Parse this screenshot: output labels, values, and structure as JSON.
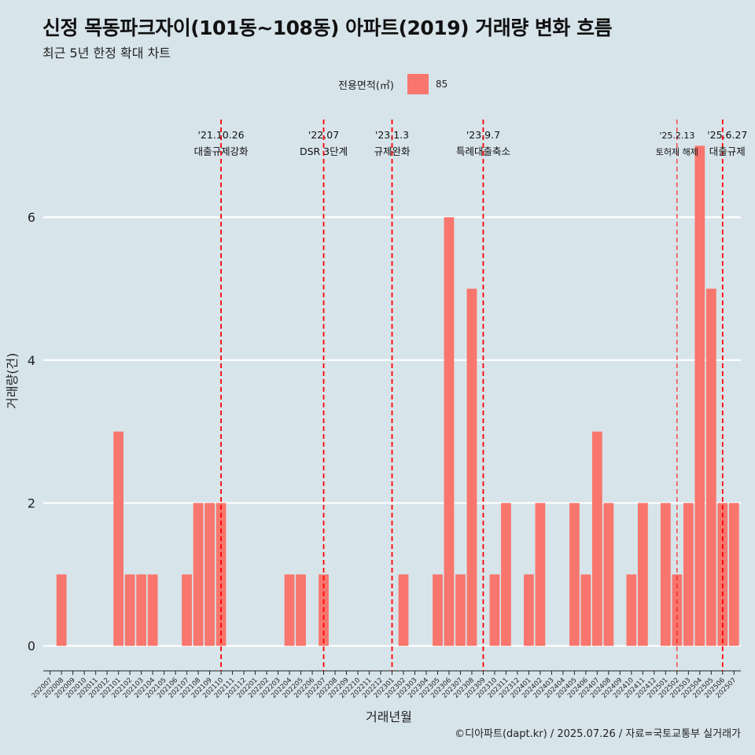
{
  "title": "신정 목동파크자이(101동~108동) 아파트(2019) 거래량 변화 흐름",
  "subtitle": "최근 5년 한정 확대 차트",
  "caption": "©디아파트(dapt.kr) / 2025.07.26 / 자료=국토교통부 실거래가",
  "colors": {
    "background": "#d7e4ea",
    "bar": "#f8766d",
    "event_line": "#ff0000",
    "grid": "#ffffff"
  },
  "chart_data": {
    "type": "bar",
    "xlabel": "거래년월",
    "ylabel": "거래량(건)",
    "ylim": [
      -0.35,
      7.5
    ],
    "yticks": [
      0,
      2,
      4,
      6
    ],
    "grid": true,
    "legend": {
      "title": "전용면적(㎡)",
      "position": "top",
      "entries": [
        "85"
      ]
    },
    "categories": [
      "202007",
      "202008",
      "202009",
      "202010",
      "202011",
      "202012",
      "202101",
      "202102",
      "202103",
      "202104",
      "202105",
      "202106",
      "202107",
      "202108",
      "202109",
      "202110",
      "202111",
      "202112",
      "202201",
      "202202",
      "202203",
      "202204",
      "202205",
      "202206",
      "202207",
      "202208",
      "202209",
      "202210",
      "202211",
      "202212",
      "202301",
      "202302",
      "202303",
      "202304",
      "202305",
      "202306",
      "202307",
      "202308",
      "202309",
      "202310",
      "202311",
      "202312",
      "202401",
      "202402",
      "202403",
      "202404",
      "202405",
      "202406",
      "202407",
      "202408",
      "202409",
      "202410",
      "202411",
      "202412",
      "202501",
      "202502",
      "202503",
      "202504",
      "202505",
      "202506",
      "202507"
    ],
    "series": [
      {
        "name": "85",
        "values": [
          0,
          1,
          0,
          0,
          0,
          0,
          3,
          1,
          1,
          1,
          0,
          0,
          1,
          2,
          2,
          2,
          0,
          0,
          0,
          0,
          0,
          1,
          1,
          0,
          1,
          0,
          0,
          0,
          0,
          0,
          0,
          1,
          0,
          0,
          1,
          6,
          1,
          5,
          0,
          1,
          2,
          0,
          1,
          2,
          0,
          0,
          2,
          1,
          3,
          2,
          0,
          1,
          2,
          0,
          2,
          1,
          2,
          7,
          5,
          2,
          2
        ]
      }
    ],
    "events": [
      {
        "date": "202110",
        "label_date": "'21.10.26",
        "label_text": "대출규제강화"
      },
      {
        "date": "202207",
        "label_date": "'22.07",
        "label_text": "DSR 3단계"
      },
      {
        "date": "202301",
        "label_date": "'23.1.3",
        "label_text": "규제완화"
      },
      {
        "date": "202309",
        "label_date": "'23.9.7",
        "label_text": "특례대출축소"
      },
      {
        "date": "202502",
        "label_date": "'25.2.13",
        "label_text": "토허제 해제"
      },
      {
        "date": "202506",
        "label_date": "'25.6.27",
        "label_text": "대출규제"
      }
    ]
  }
}
